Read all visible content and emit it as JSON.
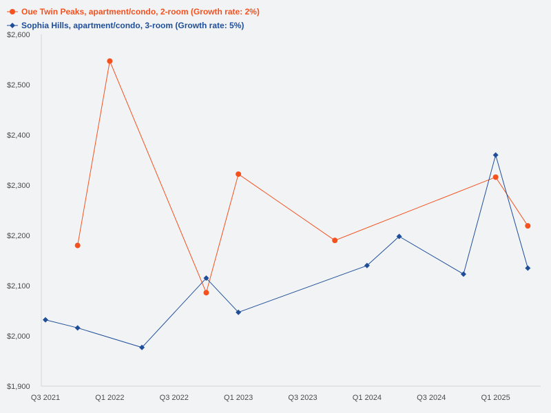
{
  "chart_data": {
    "type": "line",
    "title": "",
    "xlabel": "",
    "ylabel": "",
    "ylim": [
      1900,
      2600
    ],
    "xlim": [
      0,
      15.4
    ],
    "y_ticks": [
      1900,
      2000,
      2100,
      2200,
      2300,
      2400,
      2500,
      2600
    ],
    "y_tick_labels": [
      "$1,900",
      "$2,000",
      "$2,100",
      "$2,200",
      "$2,300",
      "$2,400",
      "$2,500",
      "$2,600"
    ],
    "x_ticks": [
      0,
      2,
      4,
      6,
      8,
      10,
      12,
      14
    ],
    "x_tick_labels": [
      "Q3 2021",
      "Q1 2022",
      "Q3 2022",
      "Q1 2023",
      "Q3 2023",
      "Q1 2024",
      "Q3 2024",
      "Q1 2025"
    ],
    "grid": false,
    "legend_position": "top-left",
    "series": [
      {
        "name": "Oue Twin Peaks, apartment/condo, 2-room (Growth rate: 2%)",
        "color": "#f4511e",
        "marker": "circle",
        "x": [
          1,
          2,
          5,
          6,
          9,
          14,
          15
        ],
        "values": [
          2180,
          2547,
          2086,
          2322,
          2190,
          2316,
          2219
        ]
      },
      {
        "name": "Sophia Hills, apartment/condo, 3-room (Growth rate: 5%)",
        "color": "#1f4e99",
        "marker": "diamond",
        "x": [
          0,
          1,
          3,
          5,
          6,
          10,
          11,
          13,
          14,
          15
        ],
        "values": [
          2032,
          2016,
          1977,
          2115,
          2047,
          2140,
          2198,
          2123,
          2360,
          2135
        ]
      }
    ]
  }
}
